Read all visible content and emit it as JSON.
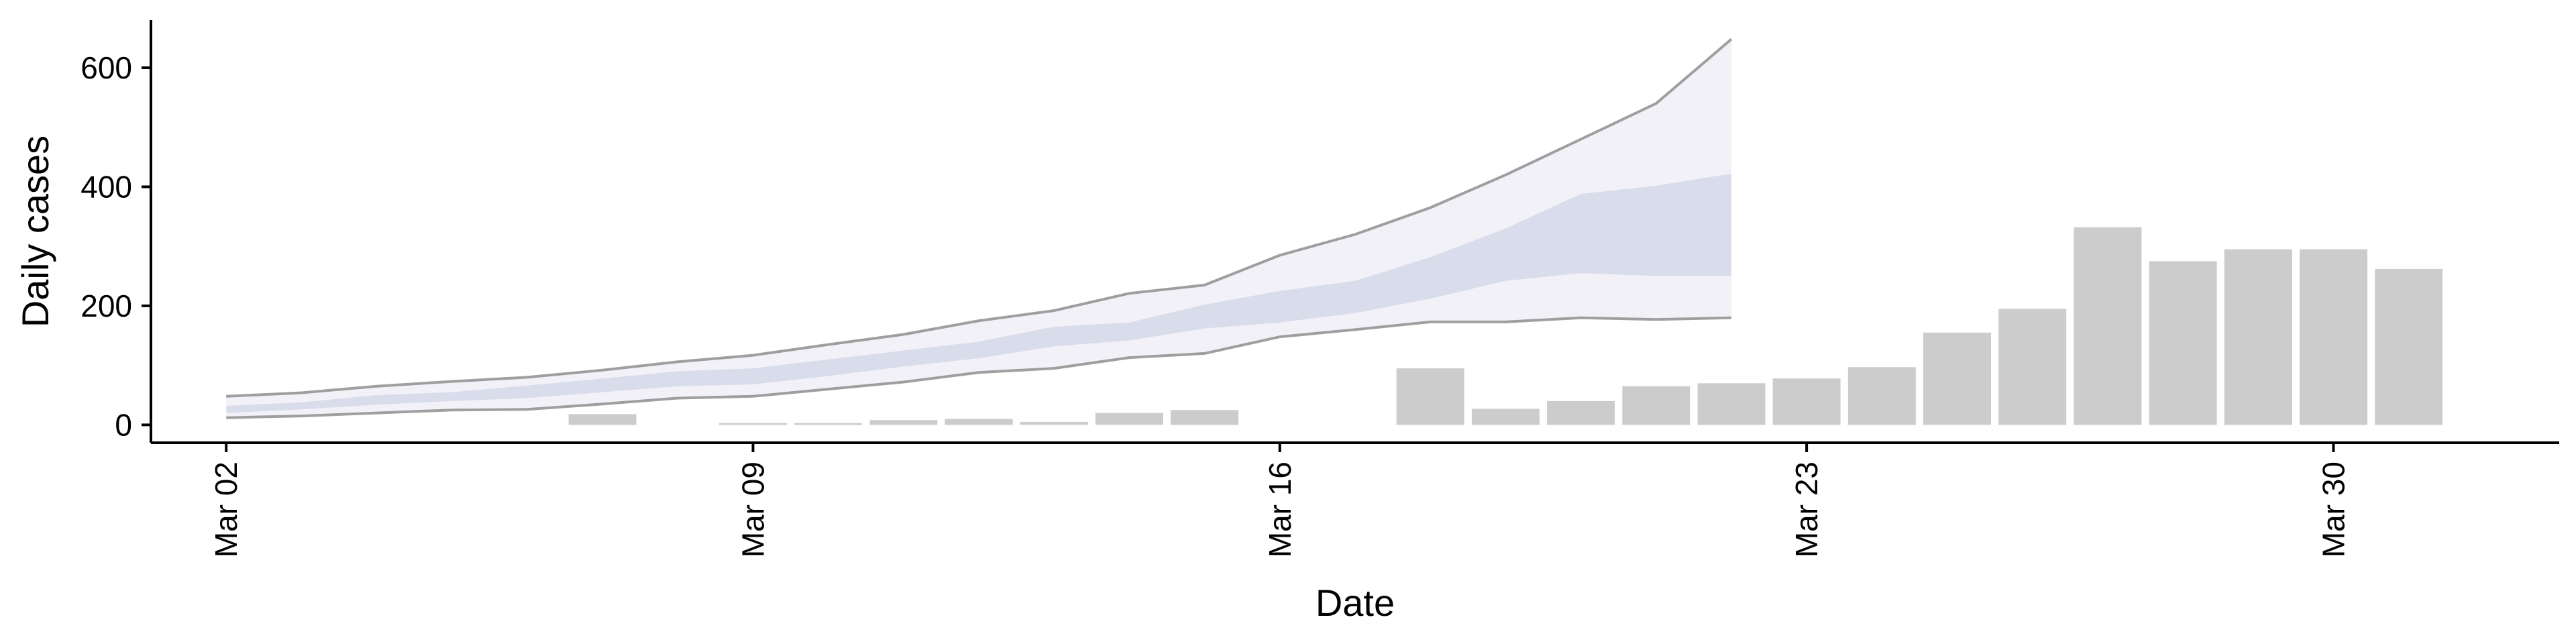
{
  "chart_data": {
    "type": "bar",
    "title": "",
    "xlabel": "Date",
    "ylabel": "Daily cases",
    "ylim": [
      -30,
      680
    ],
    "y_ticks": [
      0,
      200,
      400,
      600
    ],
    "x_range": [
      "2020-03-01",
      "2020-04-02"
    ],
    "x_ticks": [
      {
        "date": "2020-03-02",
        "label": "Mar 02"
      },
      {
        "date": "2020-03-09",
        "label": "Mar 09"
      },
      {
        "date": "2020-03-16",
        "label": "Mar 16"
      },
      {
        "date": "2020-03-23",
        "label": "Mar 23"
      },
      {
        "date": "2020-03-30",
        "label": "Mar 30"
      }
    ],
    "grid": false,
    "bar_color": "#cccccc",
    "band_colors": {
      "outer": "#eeeff6",
      "inner": "#d3d7e6",
      "edge_line": "#888888"
    },
    "bars": [
      {
        "date": "2020-03-07",
        "value": 18
      },
      {
        "date": "2020-03-09",
        "value": 3
      },
      {
        "date": "2020-03-10",
        "value": 3
      },
      {
        "date": "2020-03-11",
        "value": 8
      },
      {
        "date": "2020-03-12",
        "value": 10
      },
      {
        "date": "2020-03-13",
        "value": 5
      },
      {
        "date": "2020-03-14",
        "value": 20
      },
      {
        "date": "2020-03-15",
        "value": 25
      },
      {
        "date": "2020-03-18",
        "value": 95
      },
      {
        "date": "2020-03-19",
        "value": 27
      },
      {
        "date": "2020-03-20",
        "value": 40
      },
      {
        "date": "2020-03-21",
        "value": 65
      },
      {
        "date": "2020-03-22",
        "value": 70
      },
      {
        "date": "2020-03-23",
        "value": 78
      },
      {
        "date": "2020-03-24",
        "value": 97
      },
      {
        "date": "2020-03-25",
        "value": 155
      },
      {
        "date": "2020-03-26",
        "value": 195
      },
      {
        "date": "2020-03-27",
        "value": 332
      },
      {
        "date": "2020-03-28",
        "value": 275
      },
      {
        "date": "2020-03-29",
        "value": 295
      },
      {
        "date": "2020-03-30",
        "value": 295
      },
      {
        "date": "2020-03-31",
        "value": 262
      }
    ],
    "bands": {
      "dates": [
        "2020-03-02",
        "2020-03-03",
        "2020-03-04",
        "2020-03-05",
        "2020-03-06",
        "2020-03-07",
        "2020-03-08",
        "2020-03-09",
        "2020-03-10",
        "2020-03-11",
        "2020-03-12",
        "2020-03-13",
        "2020-03-14",
        "2020-03-15",
        "2020-03-16",
        "2020-03-17",
        "2020-03-18",
        "2020-03-19",
        "2020-03-20",
        "2020-03-21",
        "2020-03-22"
      ],
      "outer_lower": [
        12,
        15,
        20,
        25,
        26,
        35,
        45,
        48,
        60,
        72,
        88,
        95,
        113,
        120,
        148,
        160,
        173,
        173,
        180,
        177,
        180
      ],
      "outer_upper": [
        48,
        54,
        65,
        73,
        80,
        92,
        106,
        117,
        135,
        152,
        175,
        192,
        221,
        235,
        285,
        320,
        365,
        420,
        480,
        540,
        648
      ],
      "inner_lower": [
        20,
        26,
        34,
        40,
        45,
        55,
        65,
        68,
        82,
        98,
        112,
        132,
        142,
        162,
        172,
        188,
        212,
        242,
        255,
        250,
        250
      ],
      "inner_upper": [
        32,
        38,
        50,
        55,
        66,
        78,
        90,
        95,
        110,
        125,
        140,
        165,
        172,
        202,
        225,
        242,
        282,
        330,
        388,
        402,
        422
      ]
    }
  }
}
